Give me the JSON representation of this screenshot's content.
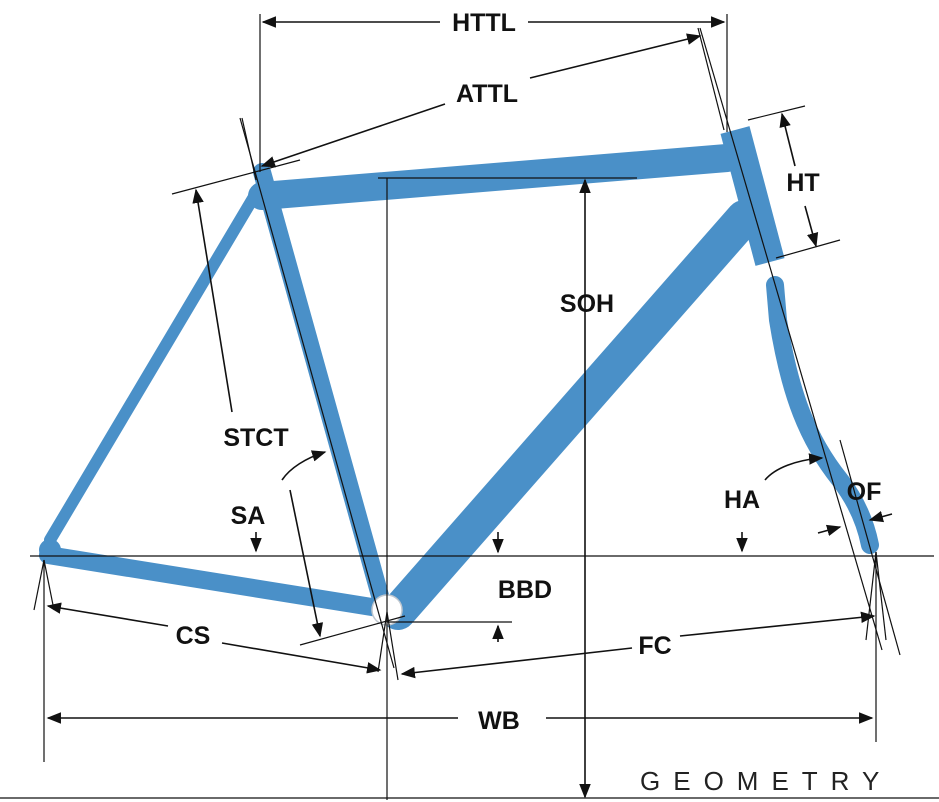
{
  "colors": {
    "frame": "#4a90c8",
    "line": "#111111",
    "background": "#ffffff"
  },
  "labels": {
    "httl": "HTTL",
    "attl": "ATTL",
    "ht": "HT",
    "soh": "SOH",
    "stct": "STCT",
    "sa": "SA",
    "ha": "HA",
    "of": "OF",
    "bbd": "BBD",
    "cs": "CS",
    "fc": "FC",
    "wb": "WB",
    "geometry": "GEOMETRY"
  }
}
